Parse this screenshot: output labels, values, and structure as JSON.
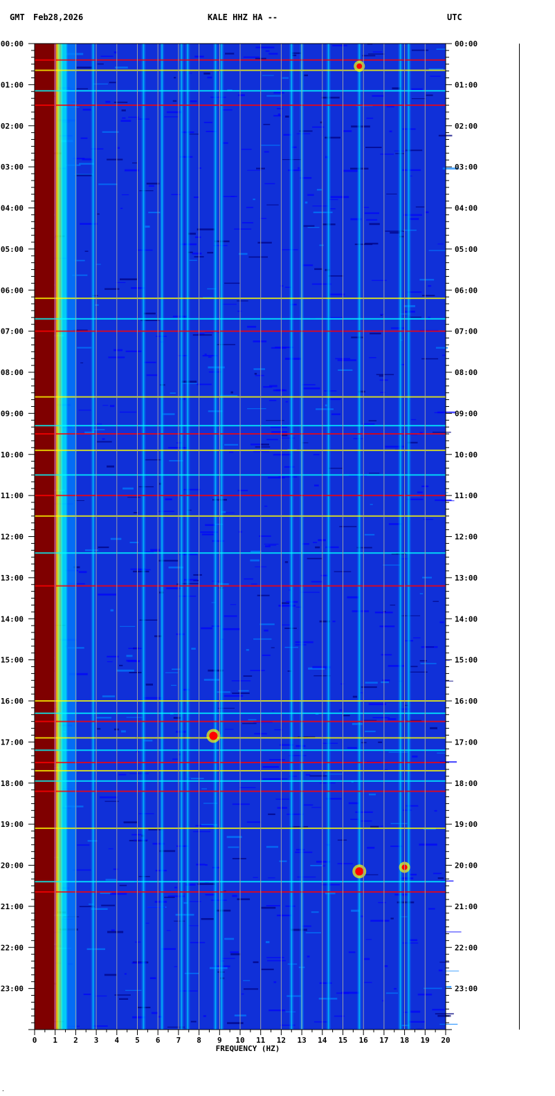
{
  "header": {
    "tz_left": "GMT",
    "date": "Feb28,2026",
    "station": "KALE HHZ HA --",
    "tz_right": "UTC"
  },
  "footnote": "·",
  "chart_data": {
    "type": "heatmap",
    "title": "KALE HHZ HA --",
    "xlabel": "FREQUENCY (HZ)",
    "ylabel": "",
    "xlim": [
      0,
      20
    ],
    "ylim": [
      0,
      24
    ],
    "y_direction": "top-to-bottom",
    "x_ticks": [
      "0",
      "1",
      "2",
      "3",
      "4",
      "5",
      "6",
      "7",
      "8",
      "9",
      "10",
      "11",
      "12",
      "13",
      "14",
      "15",
      "16",
      "17",
      "18",
      "19",
      "20"
    ],
    "y_ticks": [
      "00:00",
      "01:00",
      "02:00",
      "03:00",
      "04:00",
      "05:00",
      "06:00",
      "07:00",
      "08:00",
      "09:00",
      "10:00",
      "11:00",
      "12:00",
      "13:00",
      "14:00",
      "15:00",
      "16:00",
      "17:00",
      "18:00",
      "19:00",
      "20:00",
      "21:00",
      "22:00",
      "23:00"
    ],
    "vertical_grid": true,
    "colormap": [
      "#00007f",
      "#0000ff",
      "#0080ff",
      "#00ffff",
      "#80ff80",
      "#ffff00",
      "#ff8000",
      "#ff0000",
      "#7f0000"
    ],
    "background_color": "#1030d8",
    "low_freq_band": {
      "freq": [
        0,
        1
      ],
      "color": "#7f0000"
    },
    "freq_lines": [
      2.85,
      5.3,
      6.2,
      7.15,
      7.45,
      8.8,
      9.1,
      12.5,
      13.0,
      14.3,
      15.8,
      17.8,
      18.2
    ],
    "time_events": [
      0.4,
      0.65,
      1.15,
      1.5,
      6.2,
      6.7,
      7.0,
      8.6,
      9.3,
      9.5,
      9.9,
      10.5,
      11.0,
      11.5,
      12.4,
      13.2,
      16.0,
      16.3,
      16.5,
      16.9,
      17.2,
      17.5,
      17.7,
      17.95,
      18.2,
      19.1,
      20.4,
      20.65
    ],
    "bursts": [
      {
        "freq": 15.8,
        "time": 20.15,
        "intensity": "high"
      },
      {
        "freq": 15.8,
        "time": 0.55,
        "intensity": "medium"
      },
      {
        "freq": 8.7,
        "time": 16.85,
        "intensity": "high"
      },
      {
        "freq": 18.0,
        "time": 20.05,
        "intensity": "medium"
      }
    ]
  }
}
